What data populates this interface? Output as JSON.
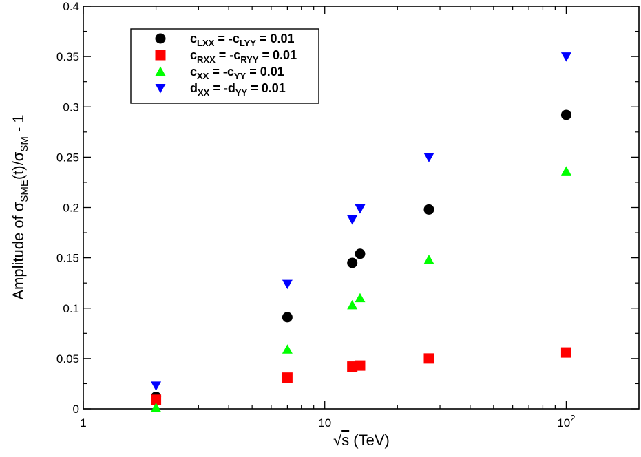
{
  "chart_data": {
    "type": "scatter",
    "x_scale": "log",
    "xlim": [
      1,
      200
    ],
    "ylim": [
      0,
      0.4
    ],
    "xlabel": {
      "radical": "√",
      "var": "s",
      "rest": " (TeV)"
    },
    "ylabel": {
      "pre": "Amplitude of σ",
      "sub1": "SME",
      "mid": "(t)/σ",
      "sub2": "SM",
      "post": " - 1"
    },
    "x_ticks": [
      {
        "value": 1,
        "base": "1",
        "exp": ""
      },
      {
        "value": 10,
        "base": "10",
        "exp": ""
      },
      {
        "value": 100,
        "base": "10",
        "exp": "2"
      }
    ],
    "y_ticks": [
      {
        "value": 0,
        "label": "0"
      },
      {
        "value": 0.05,
        "label": "0.05"
      },
      {
        "value": 0.1,
        "label": "0.1"
      },
      {
        "value": 0.15,
        "label": "0.15"
      },
      {
        "value": 0.2,
        "label": "0.2"
      },
      {
        "value": 0.25,
        "label": "0.25"
      },
      {
        "value": 0.3,
        "label": "0.3"
      },
      {
        "value": 0.35,
        "label": "0.35"
      },
      {
        "value": 0.4,
        "label": "0.4"
      }
    ],
    "grid": false,
    "legend_position": "top-left",
    "series": [
      {
        "marker": "circle",
        "color": "#000000",
        "legend": [
          [
            "c",
            "n"
          ],
          [
            "LXX",
            "s"
          ],
          [
            " = -c",
            "n"
          ],
          [
            "LYY",
            "s"
          ],
          [
            " = 0.01",
            "n"
          ]
        ],
        "points": [
          [
            2,
            0.012
          ],
          [
            7,
            0.091
          ],
          [
            13,
            0.145
          ],
          [
            14,
            0.154
          ],
          [
            27,
            0.198
          ],
          [
            100,
            0.292
          ]
        ]
      },
      {
        "marker": "square",
        "color": "#ff0000",
        "legend": [
          [
            "c",
            "n"
          ],
          [
            "RXX",
            "s"
          ],
          [
            " = -c",
            "n"
          ],
          [
            "RYY",
            "s"
          ],
          [
            " = 0.01",
            "n"
          ]
        ],
        "points": [
          [
            2,
            0.009
          ],
          [
            7,
            0.031
          ],
          [
            13,
            0.042
          ],
          [
            14,
            0.043
          ],
          [
            27,
            0.05
          ],
          [
            100,
            0.056
          ]
        ]
      },
      {
        "marker": "triangle-up",
        "color": "#00ff00",
        "legend": [
          [
            "c",
            "n"
          ],
          [
            "XX",
            "s"
          ],
          [
            " = -c",
            "n"
          ],
          [
            "YY",
            "s"
          ],
          [
            " = 0.01",
            "n"
          ]
        ],
        "points": [
          [
            2,
            0.001
          ],
          [
            7,
            0.059
          ],
          [
            13,
            0.103
          ],
          [
            14,
            0.11
          ],
          [
            27,
            0.148
          ],
          [
            100,
            0.236
          ]
        ]
      },
      {
        "marker": "triangle-down",
        "color": "#0000ff",
        "legend": [
          [
            "d",
            "n"
          ],
          [
            "XX",
            "s"
          ],
          [
            " = -d",
            "n"
          ],
          [
            "YY",
            "s"
          ],
          [
            " = 0.01",
            "n"
          ]
        ],
        "points": [
          [
            2,
            0.023
          ],
          [
            7,
            0.124
          ],
          [
            13,
            0.188
          ],
          [
            14,
            0.199
          ],
          [
            27,
            0.25
          ],
          [
            100,
            0.35
          ]
        ]
      }
    ]
  }
}
